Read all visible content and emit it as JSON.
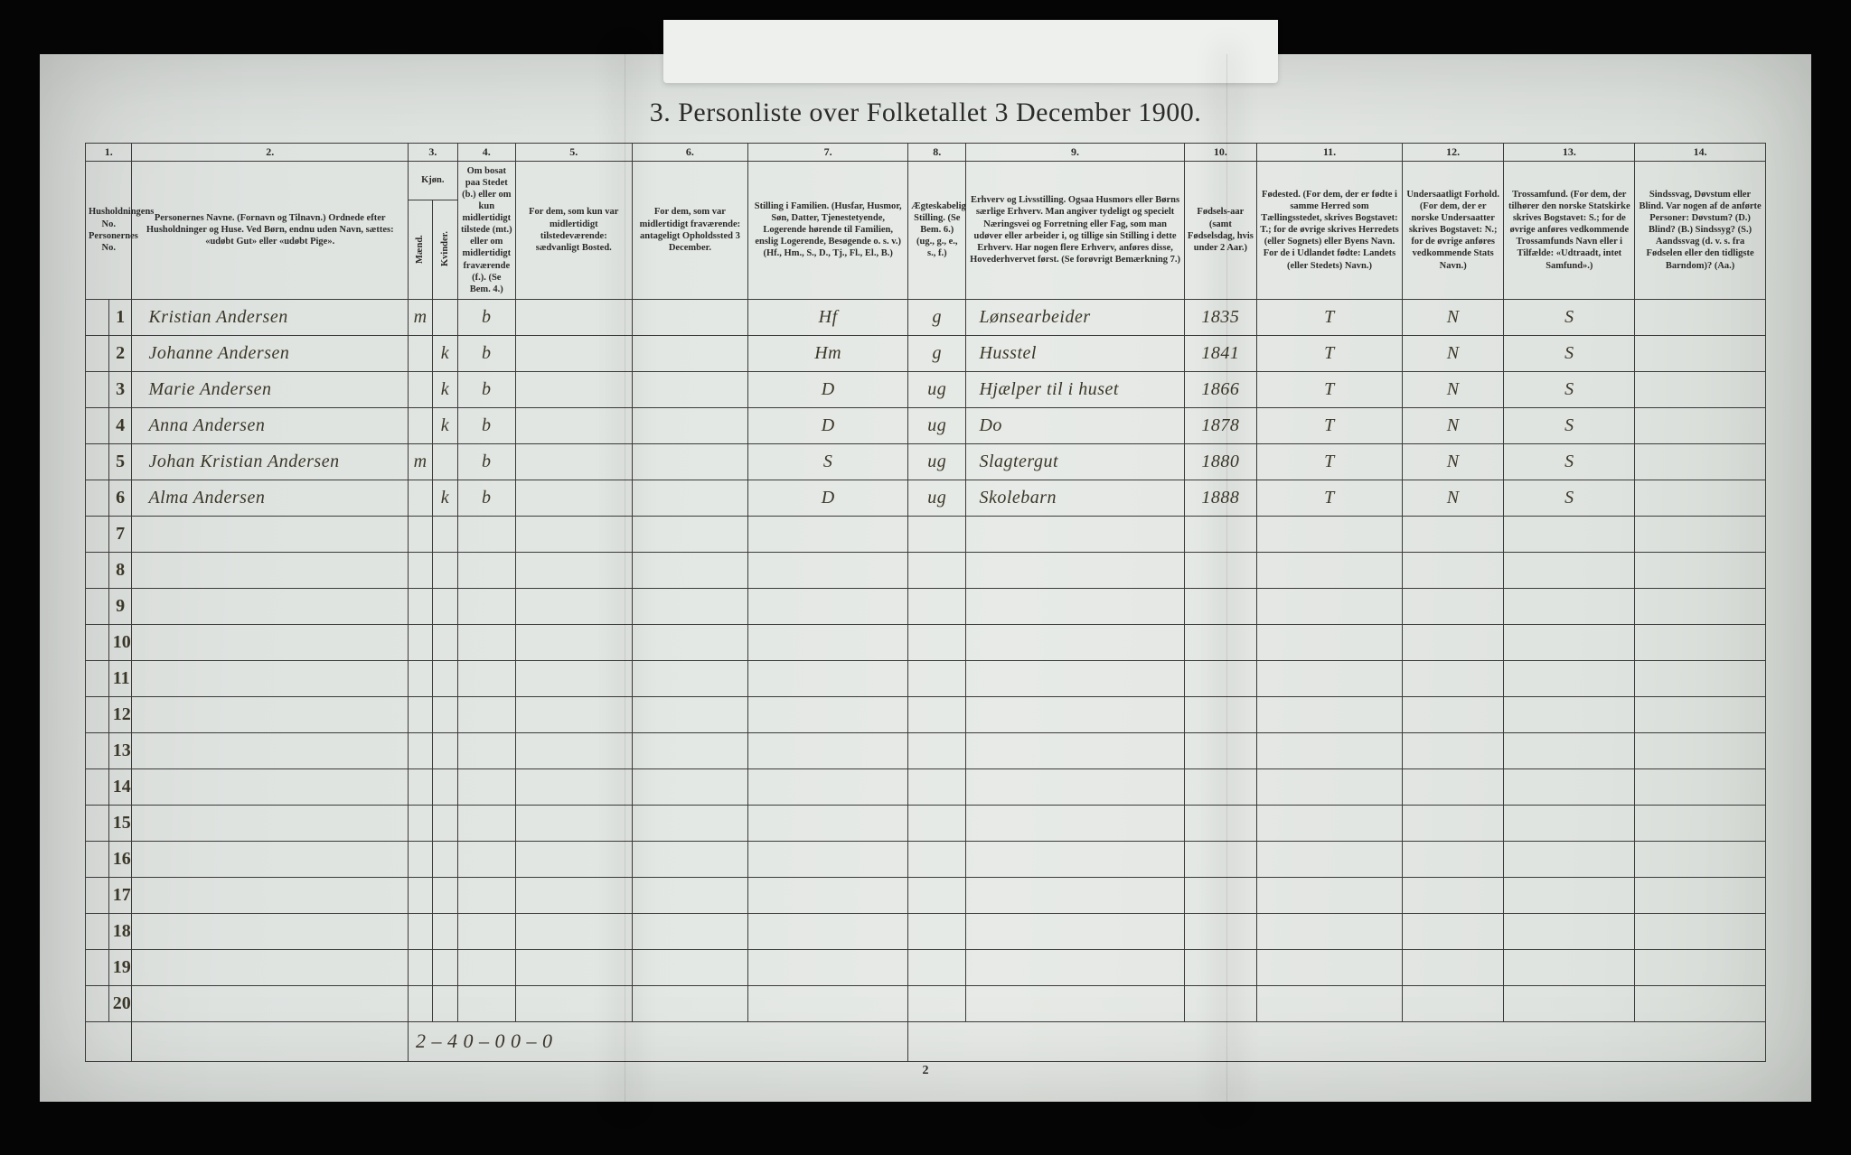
{
  "title": "3. Personliste over Folketallet 3 December 1900.",
  "page_number": "2",
  "column_numbers": [
    "1.",
    "2.",
    "3.",
    "4.",
    "5.",
    "6.",
    "7.",
    "8.",
    "9.",
    "10.",
    "11.",
    "12.",
    "13.",
    "14."
  ],
  "col3_label": "Kjøn.",
  "col3_sub": [
    "Mænd.",
    "Kvinder."
  ],
  "headers": {
    "c1": "Husholdningens No.\nPersonernes No.",
    "c2": "Personernes Navne.\n(Fornavn og Tilnavn.)\nOrdnede efter Husholdninger og Huse.\nVed Børn, endnu uden Navn, sættes: «udøbt Gut» eller «udøbt Pige».",
    "c4": "Om bosat paa Stedet (b.) eller om kun midlertidigt tilstede (mt.) eller om midlertidigt fraværende (f.).\n(Se Bem. 4.)",
    "c5": "For dem, som kun var midlertidigt tilstedeværende:\nsædvanligt Bosted.",
    "c6": "For dem, som var midlertidigt fraværende:\nantageligt Opholdssted 3 December.",
    "c7": "Stilling i Familien.\n(Husfar, Husmor, Søn, Datter, Tjenestetyende, Logerende hørende til Familien, enslig Logerende, Besøgende o. s. v.)\n(Hf., Hm., S., D., Tj., Fl., El., B.)",
    "c8": "Ægteskabelig Stilling.\n(Se Bem. 6.)\n(ug., g., e., s., f.)",
    "c9": "Erhverv og Livsstilling.\nOgsaa Husmors eller Børns særlige Erhverv. Man angiver tydeligt og specielt Næringsvei og Forretning eller Fag, som man udøver eller arbeider i, og tillige sin Stilling i dette Erhverv. Har nogen flere Erhverv, anføres disse, Hovederhvervet først.\n(Se forøvrigt Bemærkning 7.)",
    "c10": "Fødsels-aar\n(samt Fødselsdag, hvis under 2 Aar.)",
    "c11": "Fødested.\n(For dem, der er fødte i samme Herred som Tællingsstedet, skrives Bogstavet: T.; for de øvrige skrives Herredets (eller Sognets) eller Byens Navn. For de i Udlandet fødte: Landets (eller Stedets) Navn.)",
    "c12": "Undersaatligt Forhold.\n(For dem, der er norske Undersaatter skrives Bogstavet: N.; for de øvrige anføres vedkommende Stats Navn.)",
    "c13": "Trossamfund.\n(For dem, der tilhører den norske Statskirke skrives Bogstavet: S.; for de øvrige anføres vedkommende Trossamfunds Navn eller i Tilfælde: «Udtraadt, intet Samfund».)",
    "c14": "Sindssvag, Døvstum eller Blind.\nVar nogen af de anførte Personer: Døvstum? (D.) Blind? (B.) Sindssyg? (S.) Aandssvag (d. v. s. fra Fødselen eller den tidligste Barndom)? (Aa.)"
  },
  "rows": [
    {
      "n": "1",
      "name": "Kristian Andersen",
      "sex_m": "m",
      "sex_k": "",
      "res": "b",
      "c5": "",
      "c6": "",
      "fam": "Hf",
      "mar": "g",
      "occ": "Lønsearbeider",
      "year": "1835",
      "birthplace": "T",
      "nat": "N",
      "rel": "S",
      "c14": ""
    },
    {
      "n": "2",
      "name": "Johanne Andersen",
      "sex_m": "",
      "sex_k": "k",
      "res": "b",
      "c5": "",
      "c6": "",
      "fam": "Hm",
      "mar": "g",
      "occ": "Husstel",
      "year": "1841",
      "birthplace": "T",
      "nat": "N",
      "rel": "S",
      "c14": ""
    },
    {
      "n": "3",
      "name": "Marie Andersen",
      "sex_m": "",
      "sex_k": "k",
      "res": "b",
      "c5": "",
      "c6": "",
      "fam": "D",
      "mar": "ug",
      "occ": "Hjælper til i huset",
      "year": "1866",
      "birthplace": "T",
      "nat": "N",
      "rel": "S",
      "c14": ""
    },
    {
      "n": "4",
      "name": "Anna Andersen",
      "sex_m": "",
      "sex_k": "k",
      "res": "b",
      "c5": "",
      "c6": "",
      "fam": "D",
      "mar": "ug",
      "occ": "Do",
      "year": "1878",
      "birthplace": "T",
      "nat": "N",
      "rel": "S",
      "c14": ""
    },
    {
      "n": "5",
      "name": "Johan Kristian Andersen",
      "sex_m": "m",
      "sex_k": "",
      "res": "b",
      "c5": "",
      "c6": "",
      "fam": "S",
      "mar": "ug",
      "occ": "Slagtergut",
      "year": "1880",
      "birthplace": "T",
      "nat": "N",
      "rel": "S",
      "c14": ""
    },
    {
      "n": "6",
      "name": "Alma Andersen",
      "sex_m": "",
      "sex_k": "k",
      "res": "b",
      "c5": "",
      "c6": "",
      "fam": "D",
      "mar": "ug",
      "occ": "Skolebarn",
      "year": "1888",
      "birthplace": "T",
      "nat": "N",
      "rel": "S",
      "c14": ""
    }
  ],
  "empty_row_numbers": [
    "7",
    "8",
    "9",
    "10",
    "11",
    "12",
    "13",
    "14",
    "15",
    "16",
    "17",
    "18",
    "19",
    "20"
  ],
  "footer_tally": "2 – 4   0 – 0   0 – 0",
  "colors": {
    "paper": "#e4e8e4",
    "ink": "#2a2a2a",
    "handwriting": "#3a342a",
    "frame": "#050505"
  },
  "column_widths_pct": [
    2,
    2,
    19,
    2,
    2,
    4,
    8,
    8,
    12,
    4,
    15,
    5,
    11,
    7,
    9,
    9,
    9
  ]
}
